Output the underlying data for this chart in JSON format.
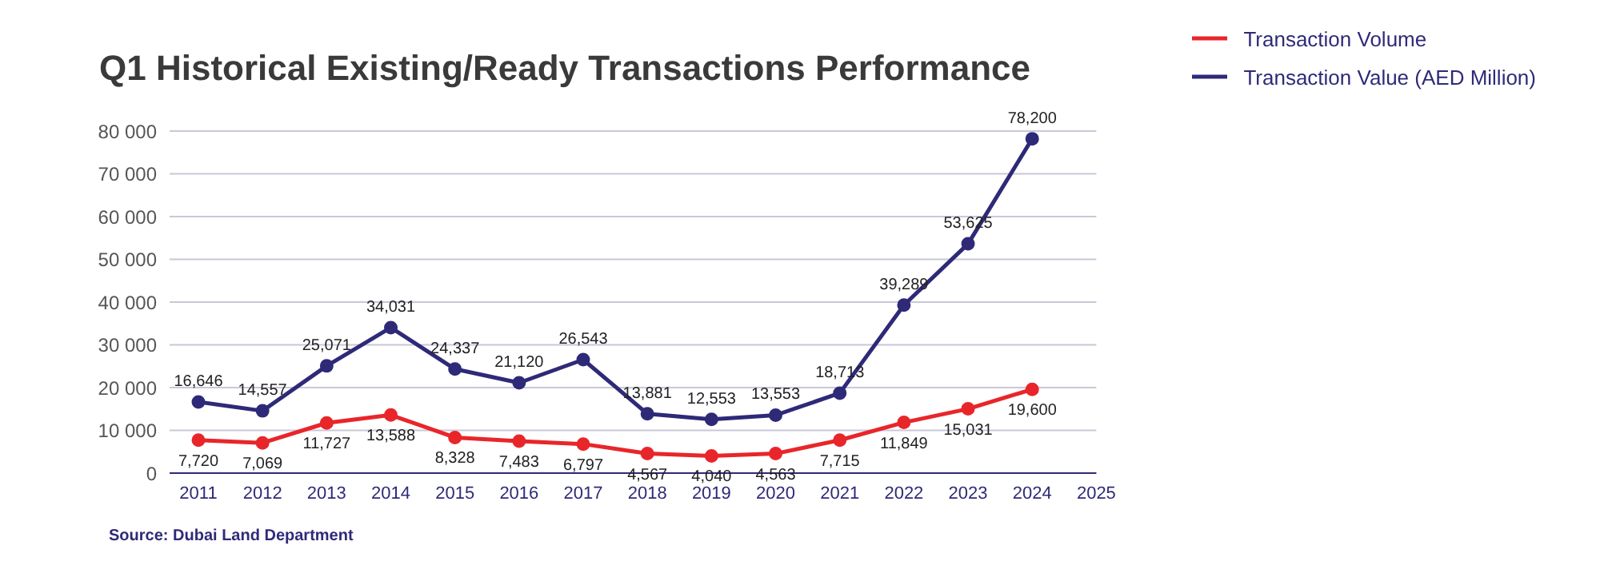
{
  "chart_data": {
    "type": "line",
    "title": "Q1 Historical Existing/Ready Transactions Performance",
    "categories": [
      "2011",
      "2012",
      "2013",
      "2014",
      "2015",
      "2016",
      "2017",
      "2018",
      "2019",
      "2020",
      "2021",
      "2022",
      "2023",
      "2024",
      "2025"
    ],
    "series": [
      {
        "name": "Transaction Volume",
        "color": "#e8262a",
        "values": [
          7720,
          7069,
          11727,
          13588,
          8328,
          7483,
          6797,
          4567,
          4040,
          4563,
          7715,
          11849,
          15031,
          19600,
          null
        ],
        "value_labels": [
          "7,720",
          "7,069",
          "11,727",
          "13,588",
          "8,328",
          "7,483",
          "6,797",
          "4,567",
          "4,040",
          "4,563",
          "7,715",
          "11,849",
          "15,031",
          "19,600",
          null
        ]
      },
      {
        "name": "Transaction Value (AED Million)",
        "color": "#2e2a78",
        "values": [
          16646,
          14557,
          25071,
          34031,
          24337,
          21120,
          26543,
          13881,
          12553,
          13553,
          18713,
          39289,
          53625,
          78200,
          null
        ],
        "value_labels": [
          "16,646",
          "14,557",
          "25,071",
          "34,031",
          "24,337",
          "21,120",
          "26,543",
          "13,881",
          "12,553",
          "13,553",
          "18,713",
          "39,289",
          "53,625",
          "78,200",
          null
        ]
      }
    ],
    "ylim": [
      0,
      80000
    ],
    "yticks": [
      {
        "value": 0,
        "label": "0"
      },
      {
        "value": 10000,
        "label": "10 000"
      },
      {
        "value": 20000,
        "label": "20 000"
      },
      {
        "value": 30000,
        "label": "30 000"
      },
      {
        "value": 40000,
        "label": "40 000"
      },
      {
        "value": 50000,
        "label": "50 000"
      },
      {
        "value": 60000,
        "label": "60 000"
      },
      {
        "value": 70000,
        "label": "70 000"
      },
      {
        "value": 80000,
        "label": "80 000"
      }
    ],
    "grid": "y",
    "legend": "top right",
    "marker": "circle",
    "line_style": "solid",
    "annotations": [
      "Source: Dubai Land Department"
    ]
  }
}
